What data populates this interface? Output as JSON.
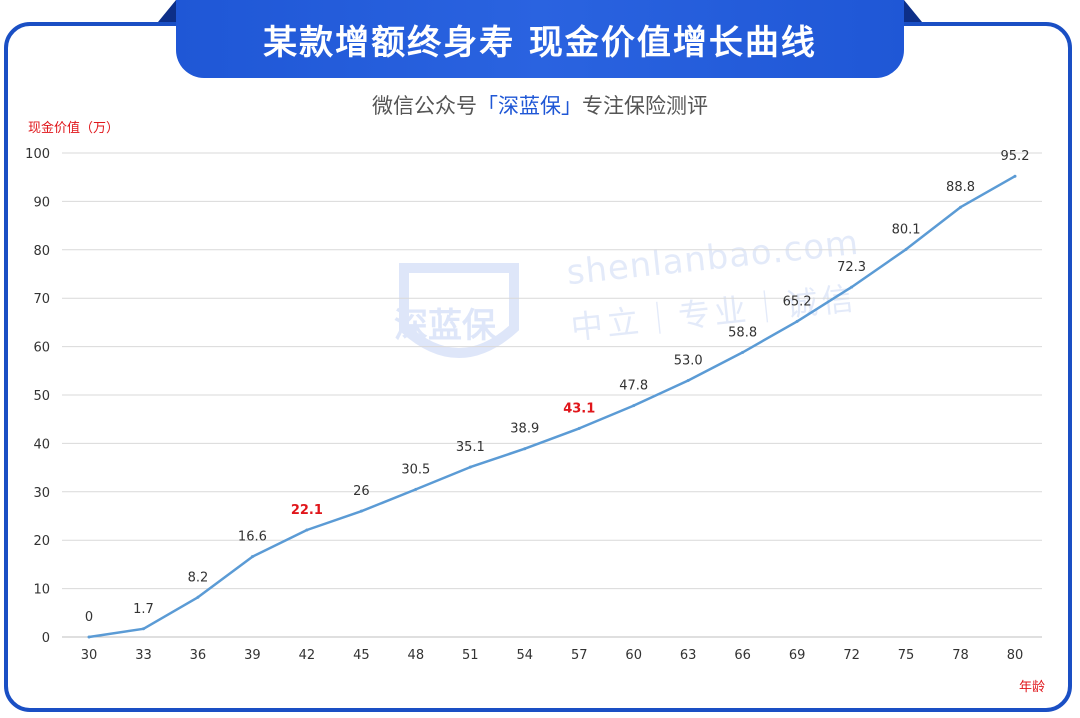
{
  "header": {
    "title": "某款增额终身寿 现金价值增长曲线",
    "subtitle_pre": "微信公众号",
    "subtitle_brand": "「深蓝保」",
    "subtitle_post": "专注保险测评"
  },
  "watermark": {
    "brand": "深蓝保",
    "url": "shenlanbao.com",
    "slogan": "中立｜专业｜诚信"
  },
  "colors": {
    "line": "#5b9bd5",
    "highlight": "#e0161b",
    "label": "#333333",
    "grid": "#d9d9d9",
    "accent": "#1f57d6"
  },
  "chart_data": {
    "type": "line",
    "title": "某款增额终身寿 现金价值增长曲线",
    "ylabel": "现金价值（万）",
    "xlabel": "年龄",
    "ylim": [
      0,
      100
    ],
    "yticks": [
      0,
      10,
      20,
      30,
      40,
      50,
      60,
      70,
      80,
      90,
      100
    ],
    "grid": true,
    "x": [
      30,
      33,
      36,
      39,
      42,
      45,
      48,
      51,
      54,
      57,
      60,
      63,
      66,
      69,
      72,
      75,
      78,
      80
    ],
    "series": [
      {
        "values": [
          0,
          1.7,
          8.2,
          16.6,
          22.1,
          26,
          30.5,
          35.1,
          38.9,
          43.1,
          47.8,
          53.0,
          58.8,
          65.2,
          72.3,
          80.1,
          88.8,
          95.2
        ],
        "labels": [
          "0",
          "1.7",
          "8.2",
          "16.6",
          "22.1",
          "26",
          "30.5",
          "35.1",
          "38.9",
          "43.1",
          "47.8",
          "53.0",
          "58.8",
          "65.2",
          "72.3",
          "80.1",
          "88.8",
          "95.2"
        ],
        "highlighted": [
          42,
          57
        ]
      }
    ]
  }
}
